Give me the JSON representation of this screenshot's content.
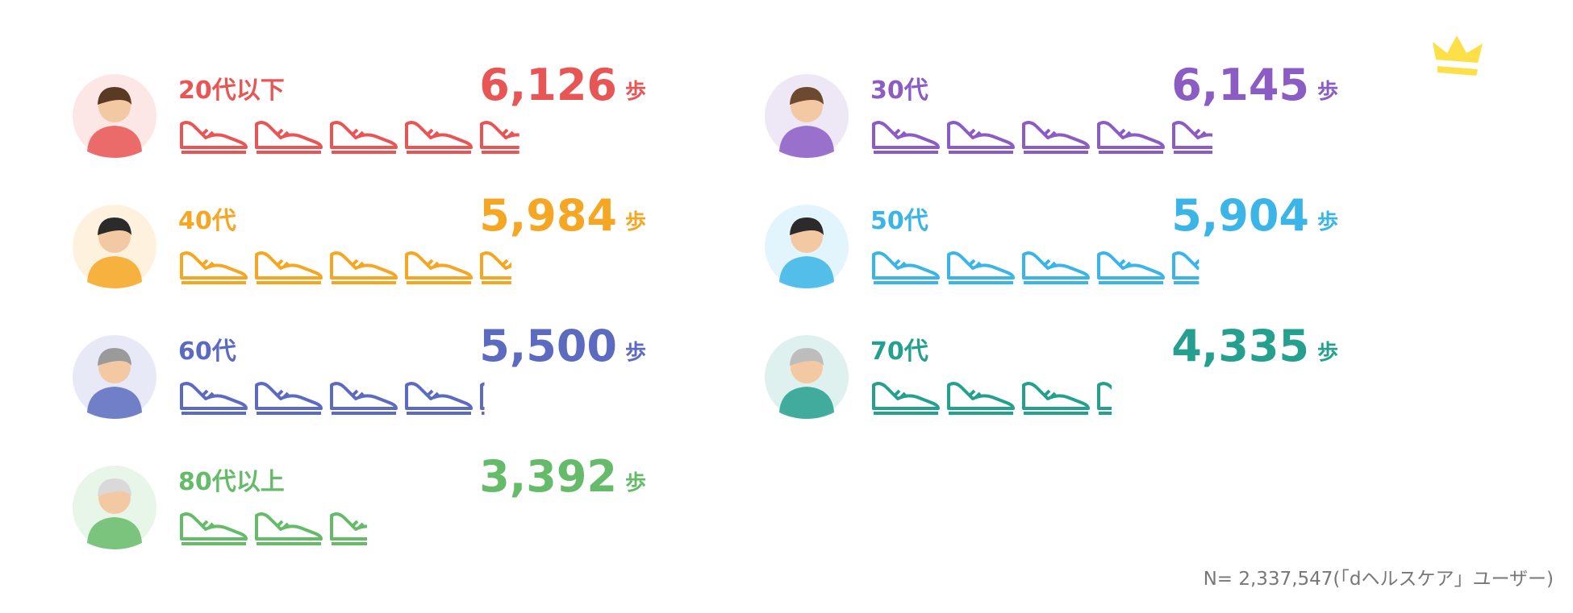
{
  "chart_data": {
    "type": "pictograph",
    "categories": [
      "20代以下",
      "30代",
      "40代",
      "50代",
      "60代",
      "70代",
      "80代以上"
    ],
    "values": [
      6126,
      6145,
      5984,
      5904,
      5500,
      4335,
      3392
    ],
    "value_labels": [
      "6,126",
      "6,145",
      "5,984",
      "5,904",
      "5,500",
      "4,335",
      "3,392"
    ],
    "colors": [
      "#e85555",
      "#8a5cc4",
      "#f5a623",
      "#3bb4e8",
      "#5c6bc0",
      "#26a08e",
      "#66bb6a"
    ],
    "unit": "歩",
    "note": "N= 2,337,547(「dヘルスケア」ユーザー)"
  }
}
